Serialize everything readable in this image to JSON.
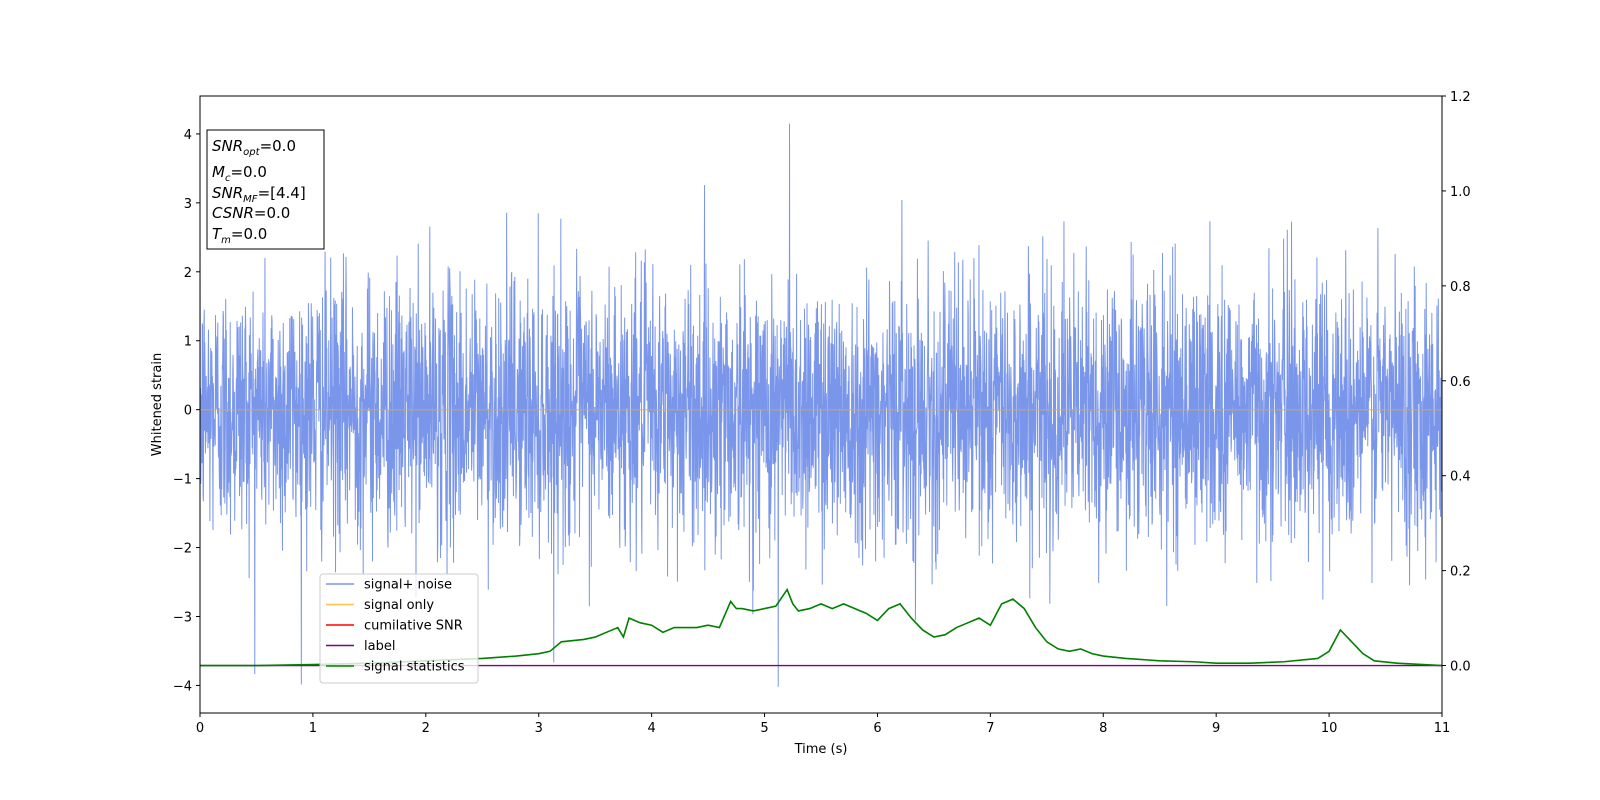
{
  "chart_data": {
    "type": "line",
    "xlabel": "Time (s)",
    "ylabel": "Whitened strain",
    "xlim": [
      0,
      11
    ],
    "ylim": [
      -4.4,
      4.55
    ],
    "y2lim": [
      -0.1,
      1.2
    ],
    "x_ticks": [
      0,
      1,
      2,
      3,
      4,
      5,
      6,
      7,
      8,
      9,
      10,
      11
    ],
    "y_ticks": [
      -4,
      -3,
      -2,
      -1,
      0,
      1,
      2,
      3,
      4
    ],
    "y2_ticks": [
      0.0,
      0.2,
      0.4,
      0.6,
      0.8,
      1.0,
      1.2
    ],
    "grid": false,
    "legend_position": "lower-left",
    "legend": [
      {
        "label": "signal+ noise",
        "color": "#4169e1"
      },
      {
        "label": "signal only",
        "color": "#ffa500"
      },
      {
        "label": "cumilative SNR",
        "color": "#ff0000"
      },
      {
        "label": "label",
        "color": "#800080"
      },
      {
        "label": "signal statistics",
        "color": "#008000"
      }
    ],
    "annotation": {
      "snr_opt": "=0.0",
      "mc": "=0.0",
      "snr_mf": "=[4.4]",
      "csnr": "=0.0",
      "tm": "=0.0"
    },
    "series": [
      {
        "name": "signal+ noise",
        "axis": "left",
        "color": "#4169e1",
        "noise": {
          "sample_count": 4400,
          "std": 0.95,
          "max": 4.15,
          "min": -4.02,
          "max_at": 5.22,
          "min_at": 5.12
        }
      },
      {
        "name": "signal only",
        "axis": "left",
        "color": "#ffa500",
        "x": [
          0,
          11
        ],
        "y": [
          0,
          0
        ]
      },
      {
        "name": "label",
        "axis": "right",
        "color": "#800080",
        "x": [
          0,
          11
        ],
        "y": [
          0,
          0
        ]
      },
      {
        "name": "signal statistics",
        "axis": "right",
        "color": "#008000",
        "x": [
          0,
          0.5,
          1.0,
          1.5,
          2.0,
          2.5,
          2.8,
          3.0,
          3.1,
          3.2,
          3.4,
          3.5,
          3.6,
          3.7,
          3.75,
          3.8,
          3.9,
          4.0,
          4.1,
          4.2,
          4.3,
          4.4,
          4.5,
          4.6,
          4.7,
          4.75,
          4.8,
          4.9,
          5.0,
          5.1,
          5.2,
          5.25,
          5.3,
          5.4,
          5.5,
          5.6,
          5.7,
          5.8,
          5.9,
          6.0,
          6.1,
          6.2,
          6.3,
          6.4,
          6.5,
          6.6,
          6.7,
          6.8,
          6.9,
          7.0,
          7.1,
          7.2,
          7.3,
          7.4,
          7.5,
          7.6,
          7.7,
          7.8,
          7.9,
          8.0,
          8.2,
          8.5,
          8.8,
          9.0,
          9.3,
          9.6,
          9.9,
          10.0,
          10.1,
          10.2,
          10.3,
          10.4,
          10.6,
          11.0
        ],
        "y": [
          0.0,
          0.0,
          0.002,
          0.005,
          0.01,
          0.015,
          0.02,
          0.025,
          0.03,
          0.05,
          0.055,
          0.06,
          0.07,
          0.08,
          0.06,
          0.1,
          0.09,
          0.085,
          0.07,
          0.08,
          0.08,
          0.08,
          0.085,
          0.08,
          0.135,
          0.12,
          0.12,
          0.115,
          0.12,
          0.125,
          0.16,
          0.13,
          0.115,
          0.12,
          0.13,
          0.12,
          0.13,
          0.12,
          0.11,
          0.095,
          0.12,
          0.13,
          0.1,
          0.075,
          0.06,
          0.065,
          0.08,
          0.09,
          0.1,
          0.085,
          0.13,
          0.14,
          0.12,
          0.08,
          0.05,
          0.035,
          0.03,
          0.035,
          0.025,
          0.02,
          0.015,
          0.01,
          0.008,
          0.005,
          0.005,
          0.008,
          0.015,
          0.03,
          0.075,
          0.05,
          0.025,
          0.01,
          0.005,
          0.0
        ]
      }
    ]
  }
}
